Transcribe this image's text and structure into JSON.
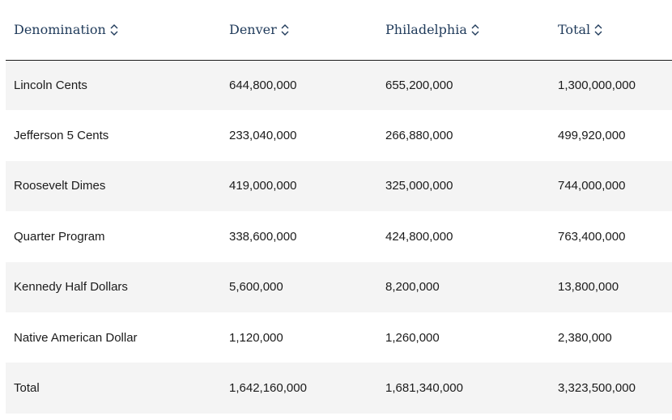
{
  "table": {
    "headers": [
      "Denomination",
      "Denver",
      "Philadelphia",
      "Total"
    ],
    "sort_icon": "sort-updown-icon",
    "rows": [
      [
        "Lincoln Cents",
        "644,800,000",
        "655,200,000",
        "1,300,000,000"
      ],
      [
        "Jefferson 5 Cents",
        "233,040,000",
        "266,880,000",
        "499,920,000"
      ],
      [
        "Roosevelt Dimes",
        "419,000,000",
        "325,000,000",
        "744,000,000"
      ],
      [
        "Quarter Program",
        "338,600,000",
        "424,800,000",
        "763,400,000"
      ],
      [
        "Kennedy Half Dollars",
        "5,600,000",
        "8,200,000",
        "13,800,000"
      ],
      [
        "Native American Dollar",
        "1,120,000",
        "1,260,000",
        "2,380,000"
      ],
      [
        "Total",
        "1,642,160,000",
        "1,681,340,000",
        "3,323,500,000"
      ]
    ]
  },
  "colors": {
    "header_text": "#1f3a5a",
    "row_stripe": "#f4f4f4",
    "body_text": "#1b1b1b"
  }
}
